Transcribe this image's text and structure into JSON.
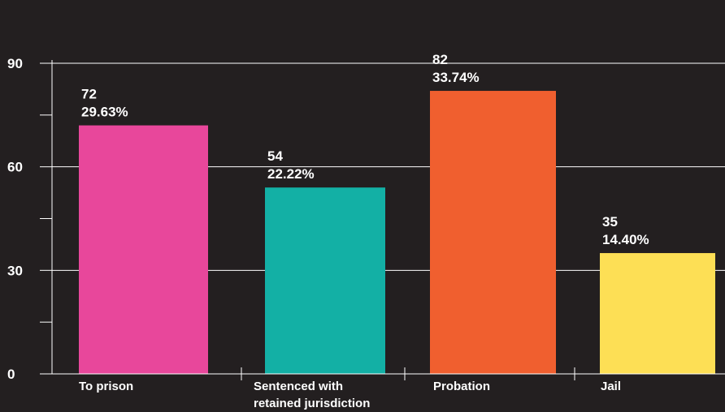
{
  "chart_data": {
    "type": "bar",
    "categories": [
      "To prison",
      "Sentenced with retained jurisdiction",
      "Probation",
      "Jail"
    ],
    "category_label_lines": [
      [
        "To prison"
      ],
      [
        "Sentenced with",
        "retained jurisdiction"
      ],
      [
        "Probation"
      ],
      [
        "Jail"
      ]
    ],
    "values": [
      72,
      54,
      82,
      35
    ],
    "percent_labels": [
      "29.63%",
      "22.22%",
      "33.74%",
      "14.40%"
    ],
    "colors": [
      "#e8479b",
      "#13b0a5",
      "#f05f2f",
      "#fddf55"
    ],
    "ylim": [
      0,
      105
    ],
    "yticks": [
      0,
      30,
      60,
      90
    ],
    "minor_yticks": [
      15,
      45,
      75
    ],
    "grid": true,
    "title": "",
    "xlabel": "",
    "ylabel": ""
  }
}
